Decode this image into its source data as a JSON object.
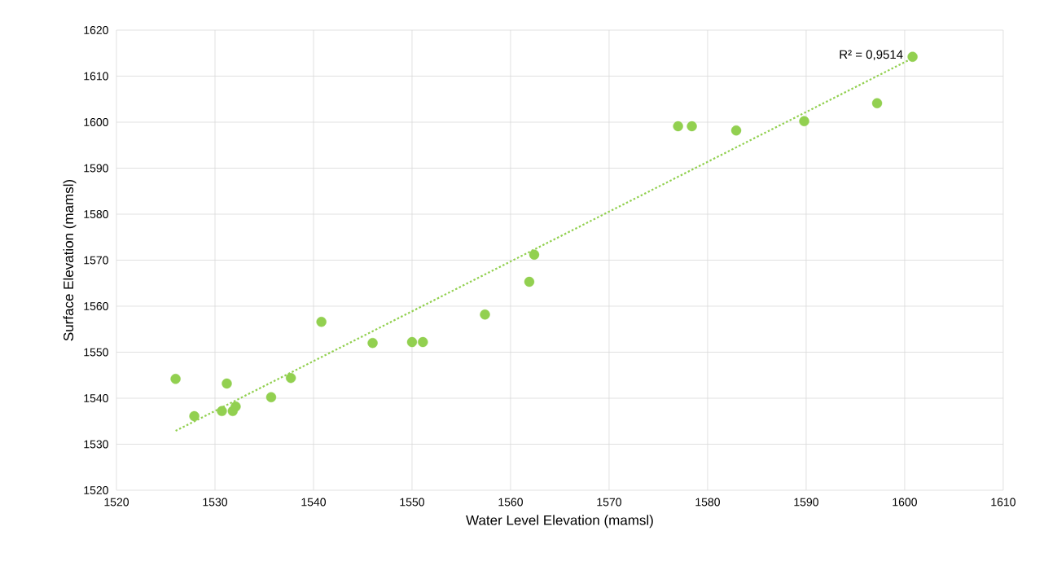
{
  "chart_data": {
    "type": "scatter",
    "xlabel": "Water Level Elevation (mamsl)",
    "ylabel": "Surface Elevation (mamsl)",
    "series": [
      {
        "color": "#92d050",
        "marker": "circle",
        "x": [
          1526.0,
          1527.9,
          1530.7,
          1531.2,
          1531.8,
          1532.1,
          1535.7,
          1537.7,
          1540.8,
          1546.0,
          1550.0,
          1551.1,
          1557.4,
          1561.9,
          1562.4,
          1577.0,
          1578.4,
          1582.9,
          1589.8,
          1597.2,
          1600.8
        ],
        "values": [
          1544.2,
          1536.1,
          1537.2,
          1543.2,
          1537.2,
          1538.2,
          1540.2,
          1544.4,
          1556.6,
          1552.0,
          1552.2,
          1552.2,
          1558.2,
          1565.3,
          1571.2,
          1599.1,
          1599.1,
          1598.2,
          1600.2,
          1604.1,
          1614.2
        ]
      },
      {
        "type": "line",
        "color": "#92d050",
        "line_style": "dotted",
        "marker": "none",
        "x": [
          1526.0,
          1600.8
        ],
        "values": [
          1532.9,
          1613.9
        ]
      }
    ],
    "annotations": [
      {
        "text": "R² = 0,9514",
        "x": 1600.8,
        "y": 1613.9
      }
    ],
    "xlim": [
      1520,
      1610
    ],
    "xticks": [
      1520,
      1530,
      1540,
      1550,
      1560,
      1570,
      1580,
      1590,
      1600,
      1610
    ],
    "ylim": [
      1520,
      1620
    ],
    "yticks": [
      1520,
      1530,
      1540,
      1550,
      1560,
      1570,
      1580,
      1590,
      1600,
      1610,
      1620
    ],
    "grid": true
  }
}
